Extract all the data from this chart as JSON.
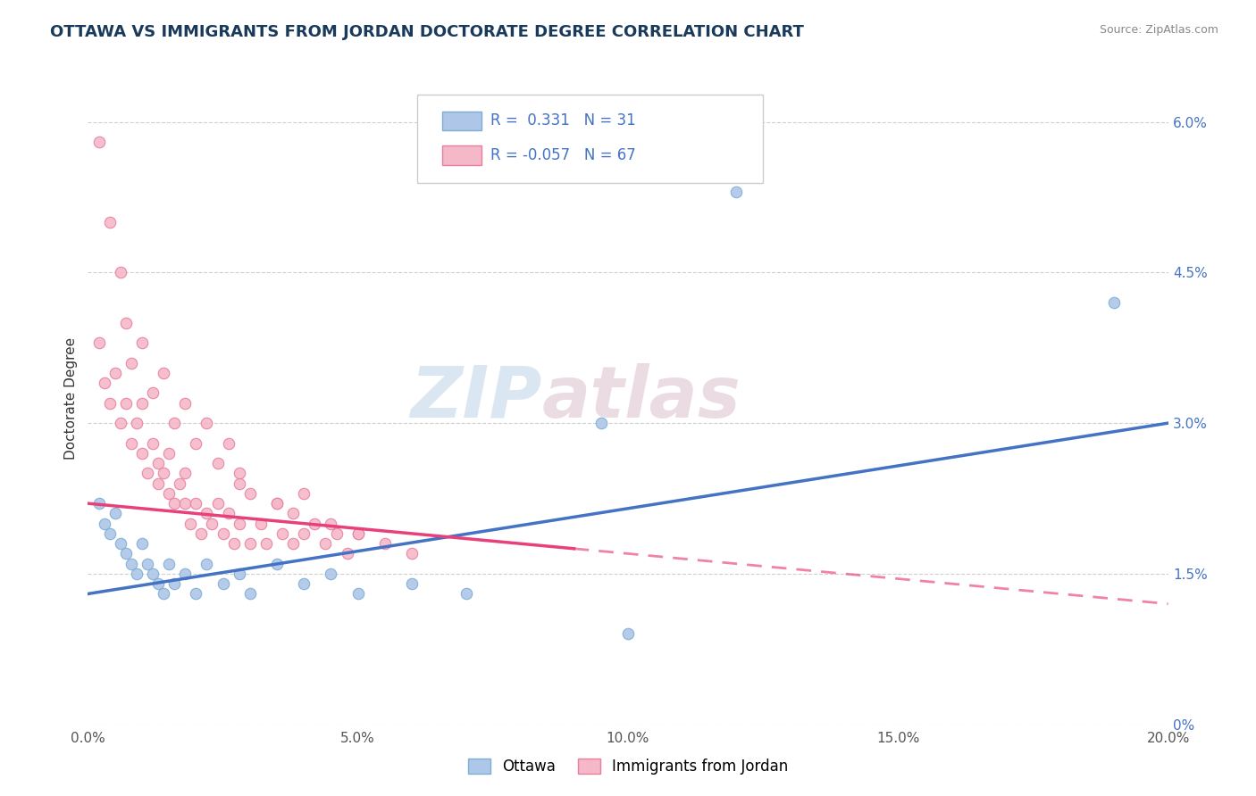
{
  "title": "OTTAWA VS IMMIGRANTS FROM JORDAN DOCTORATE DEGREE CORRELATION CHART",
  "source": "Source: ZipAtlas.com",
  "ylabel": "Doctorate Degree",
  "xlim": [
    0.0,
    0.2
  ],
  "ylim": [
    0.0,
    0.065
  ],
  "xticks": [
    0.0,
    0.05,
    0.1,
    0.15,
    0.2
  ],
  "xtick_labels": [
    "0.0%",
    "5.0%",
    "10.0%",
    "15.0%",
    "20.0%"
  ],
  "yticks": [
    0.0,
    0.015,
    0.03,
    0.045,
    0.06
  ],
  "ytick_labels": [
    "0%",
    "1.5%",
    "3.0%",
    "4.5%",
    "6.0%"
  ],
  "ottawa_color": "#aec6e8",
  "ottawa_edge_color": "#7bafd4",
  "jordan_color": "#f4b8c8",
  "jordan_edge_color": "#e87fa0",
  "trend_ottawa_color": "#4472c4",
  "trend_jordan_color": "#e8407a",
  "legend_r_ottawa": "0.331",
  "legend_n_ottawa": "31",
  "legend_r_jordan": "-0.057",
  "legend_n_jordan": "67",
  "legend_label_ottawa": "Ottawa",
  "legend_label_jordan": "Immigrants from Jordan",
  "watermark_left": "ZIP",
  "watermark_right": "atlas",
  "grid_color": "#d0d0d0",
  "background_color": "#ffffff",
  "trend_ottawa_x0": 0.0,
  "trend_ottawa_y0": 0.013,
  "trend_ottawa_x1": 0.2,
  "trend_ottawa_y1": 0.03,
  "trend_jordan_x0": 0.0,
  "trend_jordan_y0": 0.022,
  "trend_jordan_x1": 0.2,
  "trend_jordan_y1": 0.012,
  "trend_jordan_solid_end": 0.09,
  "ottawa_points": [
    [
      0.002,
      0.022
    ],
    [
      0.003,
      0.02
    ],
    [
      0.004,
      0.019
    ],
    [
      0.005,
      0.021
    ],
    [
      0.006,
      0.018
    ],
    [
      0.007,
      0.017
    ],
    [
      0.008,
      0.016
    ],
    [
      0.009,
      0.015
    ],
    [
      0.01,
      0.018
    ],
    [
      0.011,
      0.016
    ],
    [
      0.012,
      0.015
    ],
    [
      0.013,
      0.014
    ],
    [
      0.014,
      0.013
    ],
    [
      0.015,
      0.016
    ],
    [
      0.016,
      0.014
    ],
    [
      0.018,
      0.015
    ],
    [
      0.02,
      0.013
    ],
    [
      0.022,
      0.016
    ],
    [
      0.025,
      0.014
    ],
    [
      0.028,
      0.015
    ],
    [
      0.03,
      0.013
    ],
    [
      0.035,
      0.016
    ],
    [
      0.04,
      0.014
    ],
    [
      0.045,
      0.015
    ],
    [
      0.05,
      0.013
    ],
    [
      0.06,
      0.014
    ],
    [
      0.07,
      0.013
    ],
    [
      0.095,
      0.03
    ],
    [
      0.12,
      0.053
    ],
    [
      0.19,
      0.042
    ],
    [
      0.1,
      0.009
    ]
  ],
  "jordan_points": [
    [
      0.002,
      0.038
    ],
    [
      0.003,
      0.034
    ],
    [
      0.004,
      0.032
    ],
    [
      0.005,
      0.035
    ],
    [
      0.006,
      0.03
    ],
    [
      0.007,
      0.032
    ],
    [
      0.008,
      0.028
    ],
    [
      0.009,
      0.03
    ],
    [
      0.01,
      0.027
    ],
    [
      0.01,
      0.032
    ],
    [
      0.011,
      0.025
    ],
    [
      0.012,
      0.028
    ],
    [
      0.013,
      0.024
    ],
    [
      0.013,
      0.026
    ],
    [
      0.014,
      0.025
    ],
    [
      0.015,
      0.023
    ],
    [
      0.015,
      0.027
    ],
    [
      0.016,
      0.022
    ],
    [
      0.017,
      0.024
    ],
    [
      0.018,
      0.022
    ],
    [
      0.018,
      0.025
    ],
    [
      0.019,
      0.02
    ],
    [
      0.02,
      0.022
    ],
    [
      0.021,
      0.019
    ],
    [
      0.022,
      0.021
    ],
    [
      0.023,
      0.02
    ],
    [
      0.024,
      0.022
    ],
    [
      0.025,
      0.019
    ],
    [
      0.026,
      0.021
    ],
    [
      0.027,
      0.018
    ],
    [
      0.028,
      0.02
    ],
    [
      0.028,
      0.024
    ],
    [
      0.03,
      0.018
    ],
    [
      0.032,
      0.02
    ],
    [
      0.033,
      0.018
    ],
    [
      0.035,
      0.022
    ],
    [
      0.036,
      0.019
    ],
    [
      0.038,
      0.018
    ],
    [
      0.04,
      0.019
    ],
    [
      0.042,
      0.02
    ],
    [
      0.044,
      0.018
    ],
    [
      0.046,
      0.019
    ],
    [
      0.048,
      0.017
    ],
    [
      0.05,
      0.019
    ],
    [
      0.002,
      0.058
    ],
    [
      0.004,
      0.05
    ],
    [
      0.006,
      0.045
    ],
    [
      0.007,
      0.04
    ],
    [
      0.008,
      0.036
    ],
    [
      0.01,
      0.038
    ],
    [
      0.012,
      0.033
    ],
    [
      0.014,
      0.035
    ],
    [
      0.016,
      0.03
    ],
    [
      0.018,
      0.032
    ],
    [
      0.02,
      0.028
    ],
    [
      0.022,
      0.03
    ],
    [
      0.024,
      0.026
    ],
    [
      0.026,
      0.028
    ],
    [
      0.028,
      0.025
    ],
    [
      0.03,
      0.023
    ],
    [
      0.035,
      0.022
    ],
    [
      0.038,
      0.021
    ],
    [
      0.04,
      0.023
    ],
    [
      0.045,
      0.02
    ],
    [
      0.05,
      0.019
    ],
    [
      0.055,
      0.018
    ],
    [
      0.06,
      0.017
    ]
  ],
  "title_fontsize": 13,
  "axis_label_fontsize": 11,
  "tick_fontsize": 11,
  "marker_size": 9
}
